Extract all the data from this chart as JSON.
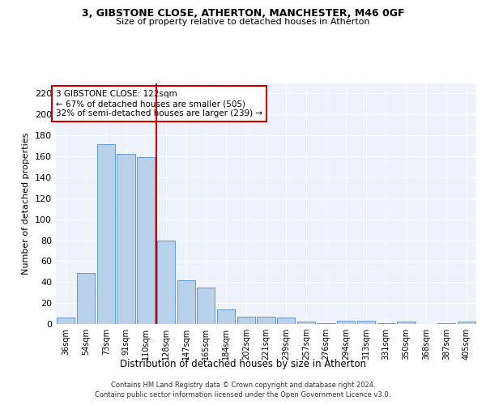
{
  "title1": "3, GIBSTONE CLOSE, ATHERTON, MANCHESTER, M46 0GF",
  "title2": "Size of property relative to detached houses in Atherton",
  "xlabel": "Distribution of detached houses by size in Atherton",
  "ylabel": "Number of detached properties",
  "categories": [
    "36sqm",
    "54sqm",
    "73sqm",
    "91sqm",
    "110sqm",
    "128sqm",
    "147sqm",
    "165sqm",
    "184sqm",
    "202sqm",
    "221sqm",
    "239sqm",
    "257sqm",
    "276sqm",
    "294sqm",
    "313sqm",
    "331sqm",
    "350sqm",
    "368sqm",
    "387sqm",
    "405sqm"
  ],
  "values": [
    6,
    49,
    172,
    162,
    159,
    80,
    42,
    35,
    14,
    7,
    7,
    6,
    2,
    1,
    3,
    3,
    1,
    2,
    0,
    1,
    2
  ],
  "bar_color": "#b8d0ea",
  "bar_edge_color": "#6699cc",
  "bg_color": "#eef2fb",
  "grid_color": "#ffffff",
  "vline_x": 4.5,
  "vline_color": "#cc0000",
  "annotation_text": "3 GIBSTONE CLOSE: 122sqm\n← 67% of detached houses are smaller (505)\n32% of semi-detached houses are larger (239) →",
  "annotation_box_color": "#ffffff",
  "annotation_box_edge": "#cc0000",
  "footer1": "Contains HM Land Registry data © Crown copyright and database right 2024.",
  "footer2": "Contains public sector information licensed under the Open Government Licence v3.0.",
  "ylim": [
    0,
    230
  ],
  "yticks": [
    0,
    20,
    40,
    60,
    80,
    100,
    120,
    140,
    160,
    180,
    200,
    220
  ]
}
